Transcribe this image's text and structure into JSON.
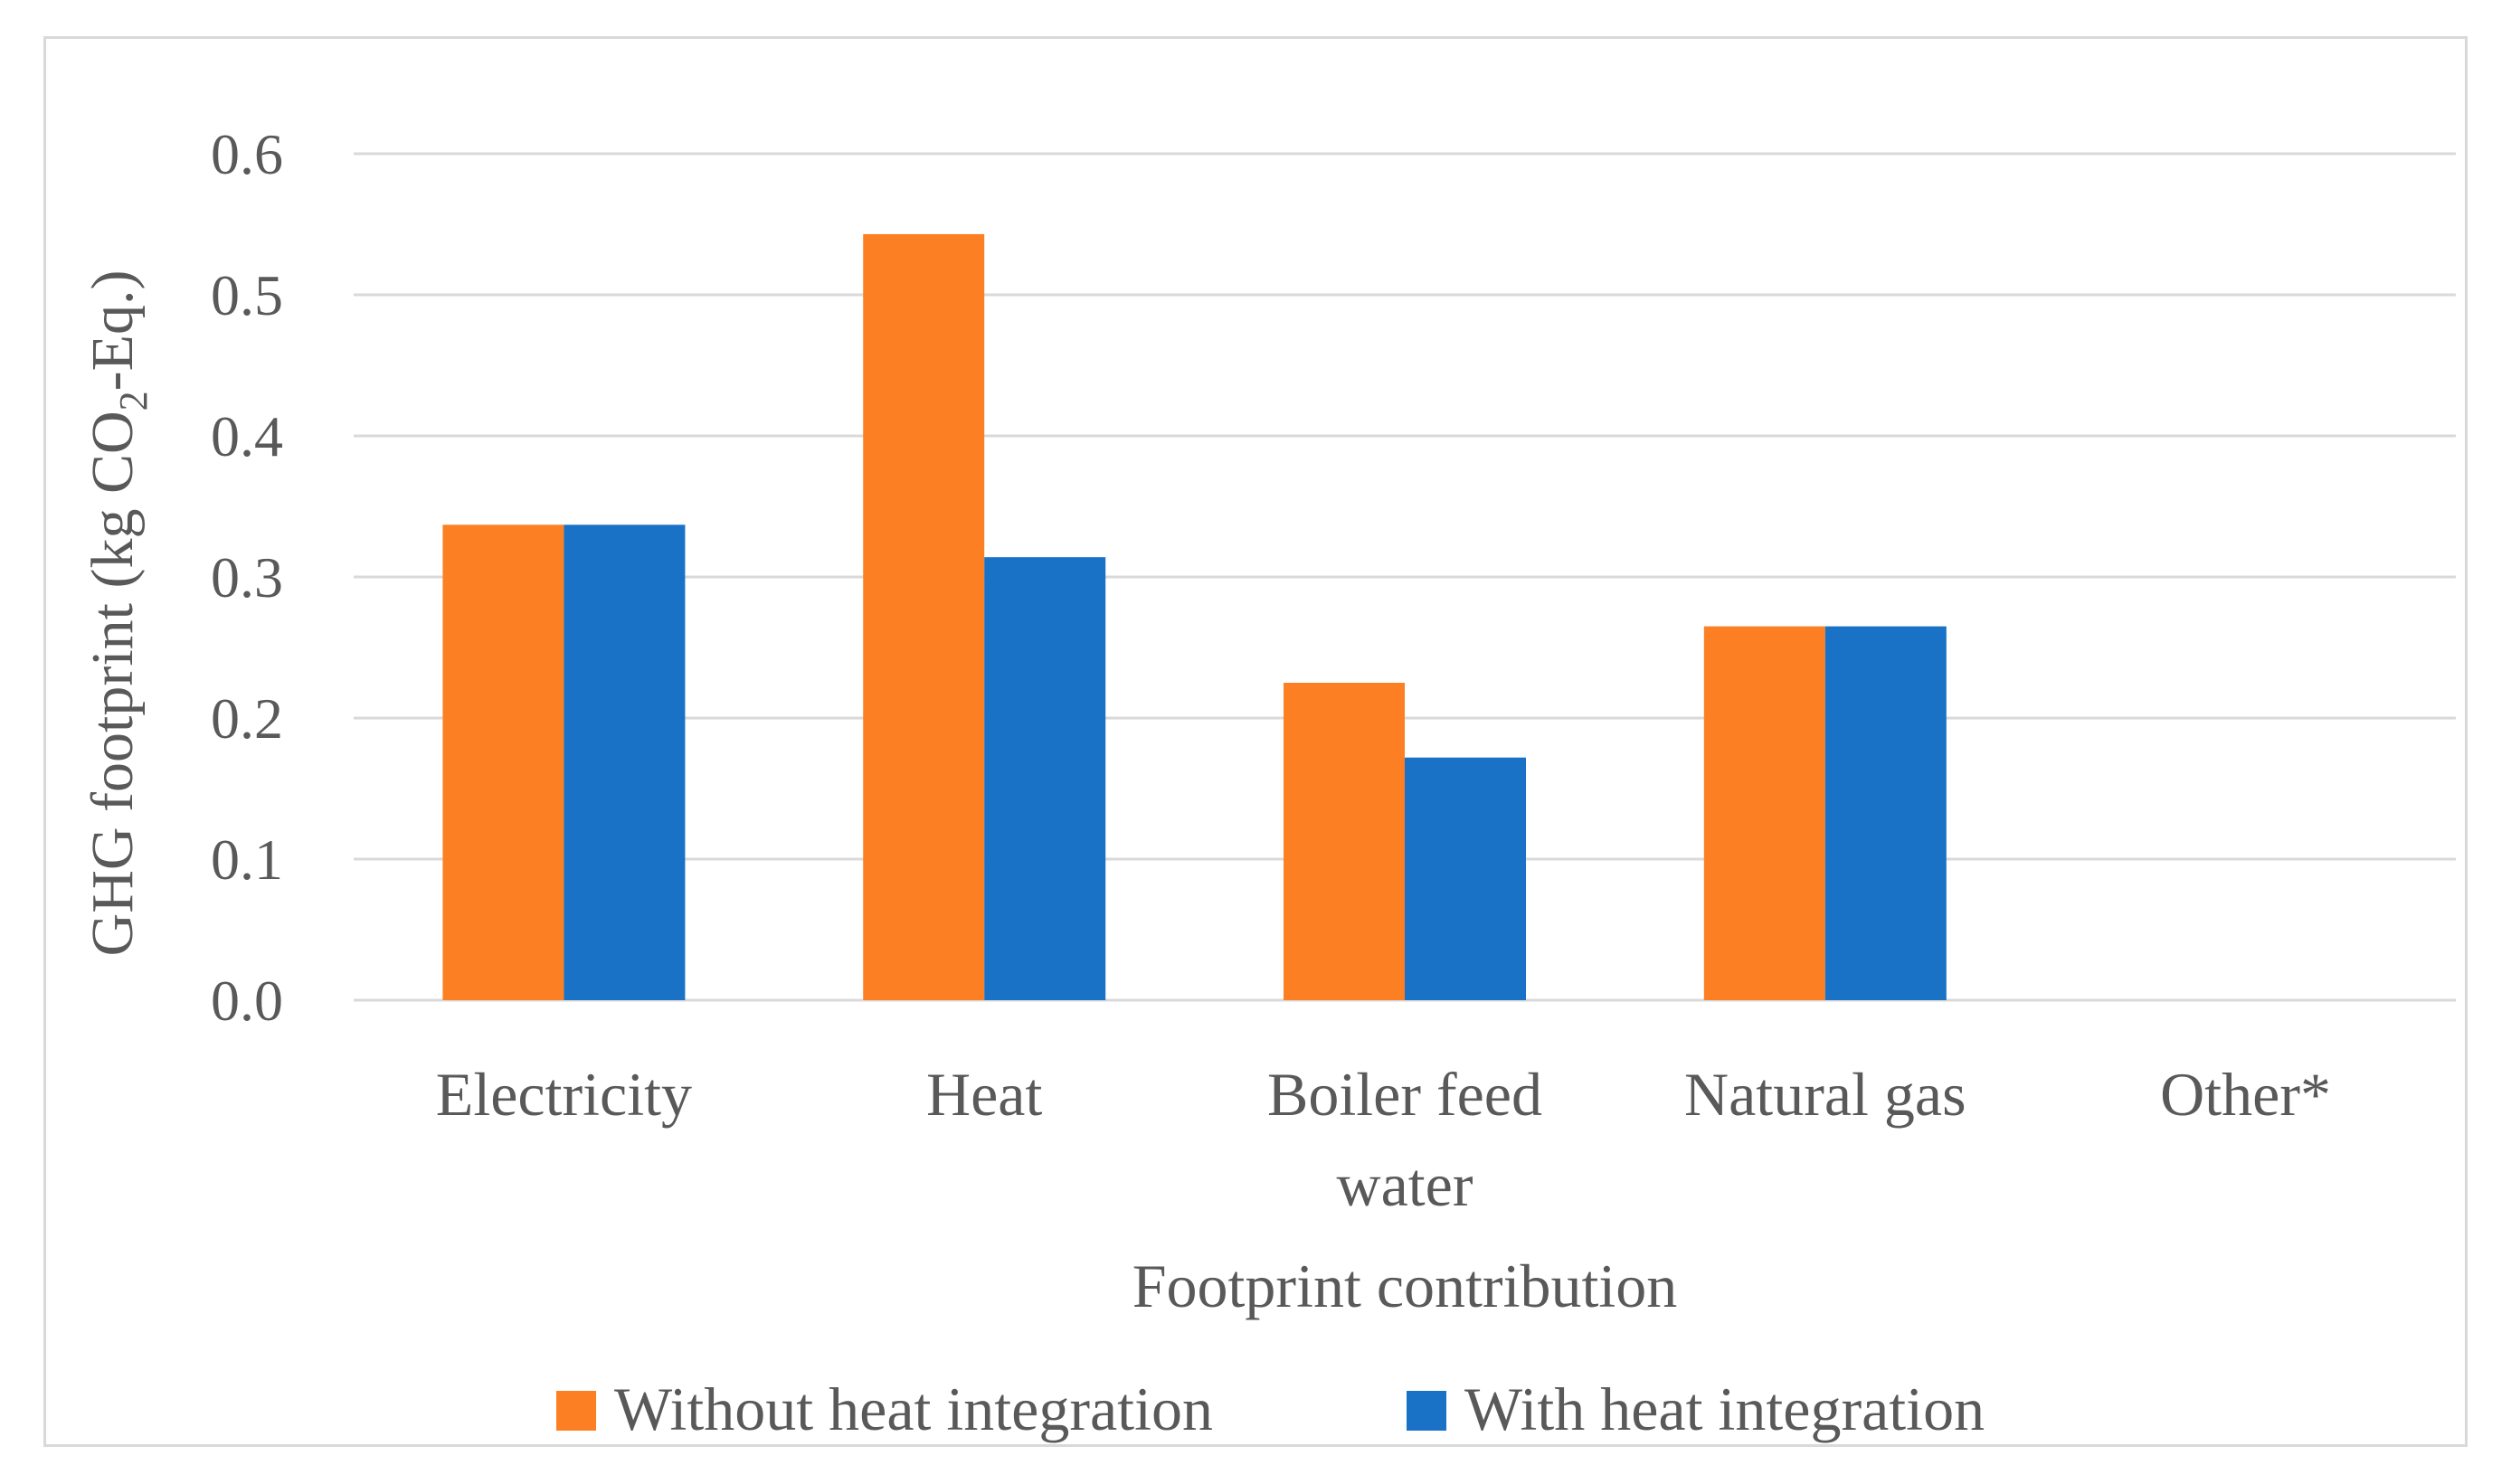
{
  "chart_data": {
    "type": "bar",
    "title": "",
    "xlabel": "Footprint contribution",
    "ylabel": {
      "prefix": "GHG footprint (kg CO",
      "subscript": "2",
      "suffix": "-Eq.)"
    },
    "ylim": [
      0,
      0.6
    ],
    "yticks": [
      "0.0",
      "0.1",
      "0.2",
      "0.3",
      "0.4",
      "0.5",
      "0.6"
    ],
    "categories": [
      [
        "Electricity"
      ],
      [
        "Heat"
      ],
      [
        "Boiler feed",
        "water"
      ],
      [
        "Natural gas"
      ],
      [
        "Other*"
      ]
    ],
    "series": [
      {
        "name": "Without heat integration",
        "color": "#fd7f23",
        "values": [
          0.337,
          0.543,
          0.225,
          0.265,
          0.0
        ]
      },
      {
        "name": "With heat integration",
        "color": "#1a72c7",
        "values": [
          0.337,
          0.314,
          0.172,
          0.265,
          0.0
        ]
      }
    ],
    "grid": true,
    "legend_position": "bottom"
  }
}
